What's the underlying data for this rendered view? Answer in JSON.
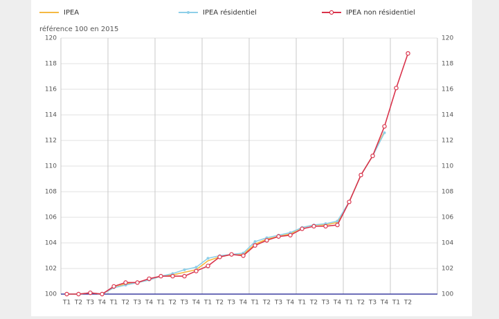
{
  "chart_data": {
    "type": "line",
    "y_axis_label": "référence 100 en 2015",
    "categories": [
      "T1",
      "T2",
      "T3",
      "T4",
      "T1",
      "T2",
      "T3",
      "T4",
      "T1",
      "T2",
      "T3",
      "T4",
      "T1",
      "T2",
      "T3",
      "T4",
      "T1",
      "T2",
      "T3",
      "T4",
      "T1",
      "T2",
      "T3",
      "T4",
      "T1",
      "T2",
      "T3",
      "T4",
      "T1",
      "T2",
      null,
      null
    ],
    "series": [
      {
        "name": "IPEA",
        "color": "#f5b942",
        "marker": "none",
        "values": [
          100,
          100,
          100.1,
          100,
          100.5,
          100.8,
          100.9,
          101.1,
          101.4,
          101.5,
          101.7,
          101.9,
          102.6,
          102.9,
          103.1,
          103.1,
          103.9,
          104.3,
          104.5,
          104.7,
          105.2,
          105.4,
          105.4,
          105.6,
          107.2,
          109.3,
          110.8,
          112.7,
          null,
          null,
          null,
          null
        ]
      },
      {
        "name": "IPEA résidentiel",
        "color": "#8ecfe8",
        "marker": "dot",
        "values": [
          100,
          100,
          100.1,
          100,
          100.5,
          100.7,
          100.9,
          101.1,
          101.4,
          101.6,
          101.9,
          102.1,
          102.8,
          103.0,
          103.1,
          103.2,
          104.1,
          104.4,
          104.6,
          104.8,
          105.2,
          105.4,
          105.5,
          105.7,
          107.2,
          109.3,
          110.8,
          112.6,
          null,
          null,
          null,
          null
        ]
      },
      {
        "name": "IPEA non résidentiel",
        "color": "#d9324a",
        "marker": "circle",
        "values": [
          100,
          100,
          100.1,
          100,
          100.6,
          100.9,
          100.9,
          101.2,
          101.4,
          101.4,
          101.4,
          101.8,
          102.2,
          102.9,
          103.1,
          103.0,
          103.8,
          104.2,
          104.5,
          104.6,
          105.1,
          105.3,
          105.3,
          105.4,
          107.2,
          109.3,
          110.8,
          113.1,
          116.1,
          118.8,
          null,
          null
        ]
      }
    ],
    "ylim": [
      100,
      120
    ],
    "yticks": [
      100,
      102,
      104,
      106,
      108,
      110,
      112,
      114,
      116,
      118,
      120
    ],
    "y2lim": [
      100,
      120
    ],
    "y2ticks": [
      100,
      102,
      104,
      106,
      108,
      110,
      112,
      114,
      116,
      118,
      120
    ],
    "grid": true,
    "legend": "top"
  }
}
